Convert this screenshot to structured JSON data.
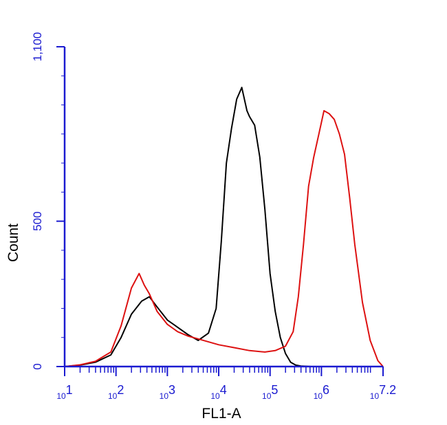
{
  "chart_data": {
    "type": "line",
    "xlabel": "FL1-A",
    "ylabel": "Count",
    "xscale": "log10",
    "xlim": [
      1,
      7.2
    ],
    "ylim": [
      0,
      1100
    ],
    "yticks": [
      {
        "value": 0,
        "label": "0"
      },
      {
        "value": 500,
        "label": "500"
      },
      {
        "value": 1100,
        "label": "1,100"
      }
    ],
    "xticks": [
      {
        "value": 1,
        "base": "10",
        "exp": "1"
      },
      {
        "value": 2,
        "base": "10",
        "exp": "2"
      },
      {
        "value": 3,
        "base": "10",
        "exp": "3"
      },
      {
        "value": 4,
        "base": "10",
        "exp": "4"
      },
      {
        "value": 5,
        "base": "10",
        "exp": "5"
      },
      {
        "value": 6,
        "base": "10",
        "exp": "6"
      },
      {
        "value": 7.2,
        "base": "10",
        "exp": "7.2"
      }
    ],
    "grid": false,
    "axis_color": "#1a1ad0",
    "series": [
      {
        "color": "#000000",
        "x": [
          1.0,
          1.3,
          1.6,
          1.9,
          2.1,
          2.3,
          2.5,
          2.65,
          2.8,
          3.0,
          3.2,
          3.4,
          3.6,
          3.8,
          3.95,
          4.05,
          4.15,
          4.25,
          4.35,
          4.45,
          4.55,
          4.6,
          4.7,
          4.8,
          4.9,
          5.0,
          5.1,
          5.2,
          5.3,
          5.4,
          5.5,
          5.6,
          5.8,
          6.0,
          6.5,
          7.0
        ],
        "y": [
          0,
          5,
          15,
          40,
          100,
          180,
          225,
          240,
          205,
          160,
          135,
          110,
          90,
          115,
          200,
          430,
          700,
          820,
          920,
          960,
          880,
          860,
          830,
          720,
          540,
          320,
          190,
          100,
          45,
          15,
          5,
          2,
          0,
          0,
          0,
          0
        ]
      },
      {
        "color": "#dd1111",
        "x": [
          1.0,
          1.3,
          1.6,
          1.9,
          2.1,
          2.3,
          2.45,
          2.55,
          2.65,
          2.8,
          3.0,
          3.2,
          3.4,
          3.6,
          3.8,
          4.0,
          4.3,
          4.6,
          4.9,
          5.1,
          5.3,
          5.45,
          5.55,
          5.65,
          5.75,
          5.85,
          5.95,
          6.05,
          6.15,
          6.25,
          6.35,
          6.45,
          6.55,
          6.65,
          6.8,
          6.95,
          7.1,
          7.2
        ],
        "y": [
          0,
          6,
          18,
          50,
          140,
          270,
          320,
          280,
          250,
          190,
          145,
          120,
          105,
          95,
          85,
          75,
          65,
          55,
          50,
          55,
          70,
          120,
          240,
          420,
          620,
          720,
          800,
          880,
          870,
          850,
          800,
          730,
          580,
          420,
          220,
          90,
          20,
          0
        ]
      }
    ]
  }
}
